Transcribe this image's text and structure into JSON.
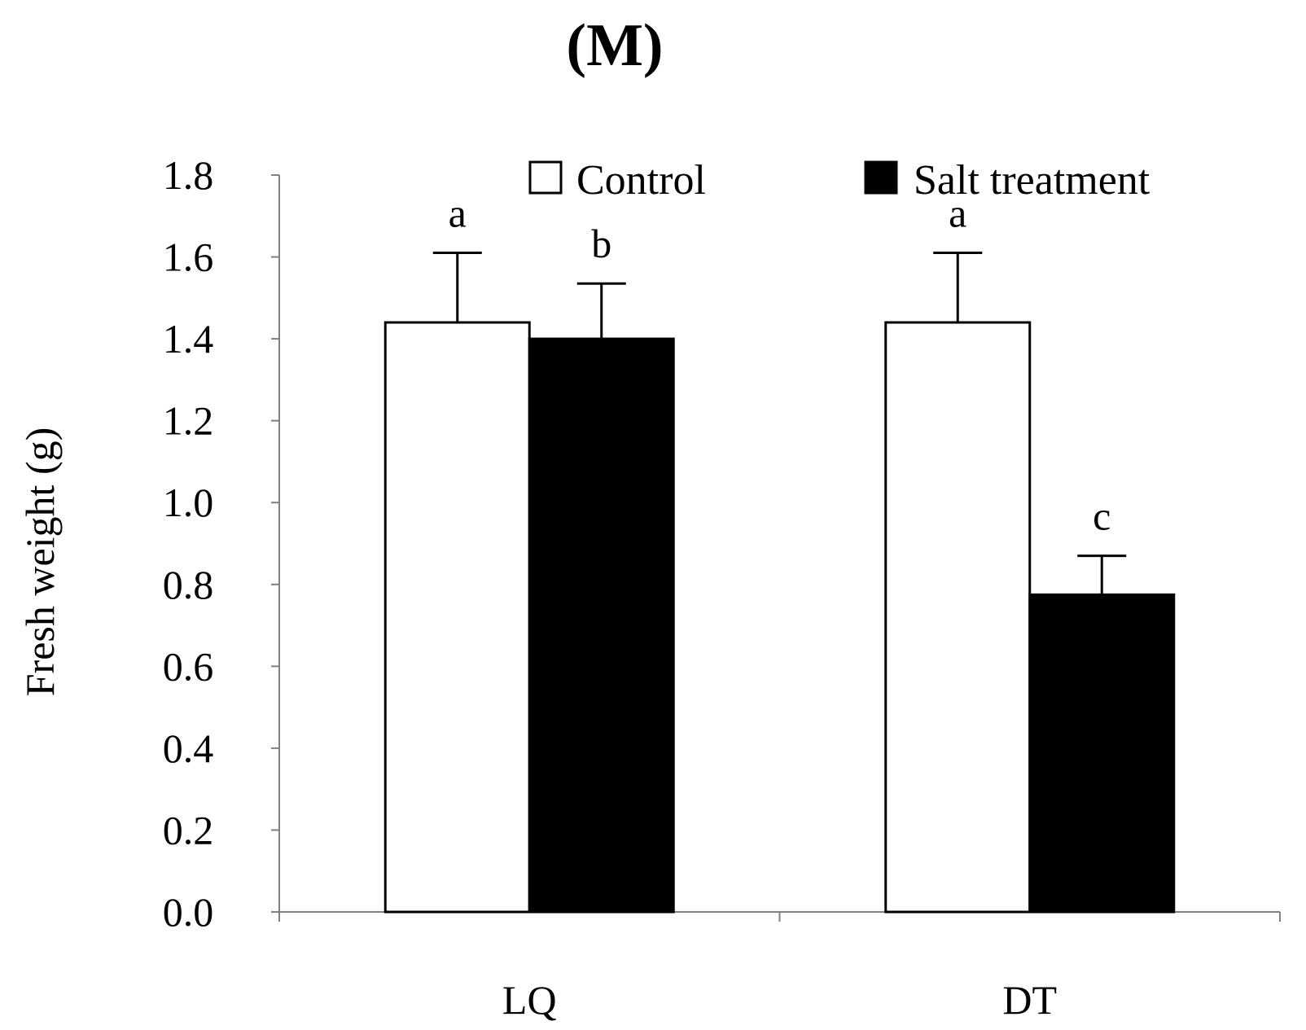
{
  "chart_data": {
    "type": "bar",
    "title": "(M)",
    "xlabel": "",
    "ylabel": "Fresh weight (g)",
    "ylim": [
      0,
      1.8
    ],
    "yticks": [
      "0.0",
      "0.2",
      "0.4",
      "0.6",
      "0.8",
      "1.0",
      "1.2",
      "1.4",
      "1.6",
      "1.8"
    ],
    "categories": [
      "LQ",
      "DT"
    ],
    "series": [
      {
        "name": "Control",
        "color": "#ffffff",
        "values": [
          1.44,
          1.44
        ],
        "errors": [
          0.17,
          0.17
        ],
        "labels": [
          "a",
          "a"
        ]
      },
      {
        "name": "Salt treatment",
        "color": "#000000",
        "values": [
          1.4,
          0.775
        ],
        "errors": [
          0.135,
          0.095
        ],
        "labels": [
          "b",
          "c"
        ]
      }
    ],
    "grid": false,
    "legend_position": "top"
  }
}
